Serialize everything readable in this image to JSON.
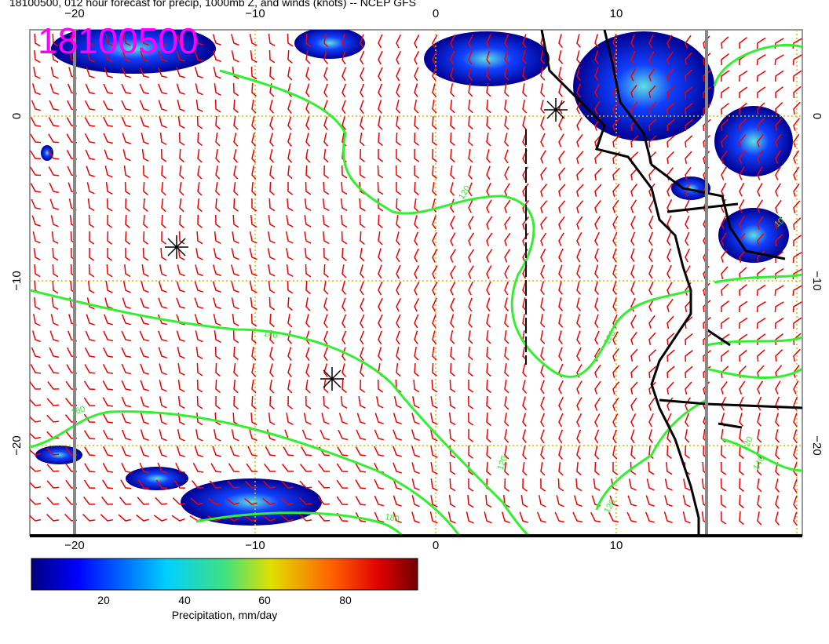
{
  "header": {
    "title": "18100500, 012 hour forecast for precip, 1000mb Z, and winds (knots) -- NCEP GFS",
    "stamp": "18100500"
  },
  "map": {
    "xticks": [
      "−20",
      "−10",
      "0",
      "10"
    ],
    "yticks": [
      "0",
      "−10",
      "−20"
    ],
    "contour_labels": [
      "120",
      "140",
      "160",
      "180",
      "120",
      "120",
      "120",
      "120",
      "140",
      "10"
    ]
  },
  "colorbar": {
    "ticks": [
      "20",
      "40",
      "60",
      "80"
    ],
    "label": "Precipitation, mm/day"
  }
}
